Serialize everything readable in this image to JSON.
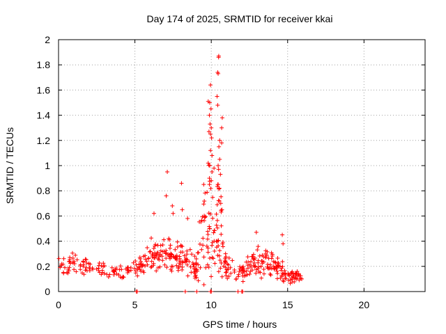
{
  "chart_data": {
    "type": "scatter",
    "title": "Day 174 of 2025, SRMTID for receiver kkai",
    "xlabel": "GPS time / hours",
    "ylabel": "SRMTID / TECUs",
    "xlim": [
      0,
      24
    ],
    "ylim": [
      0,
      2
    ],
    "x_ticks": [
      0,
      5,
      10,
      15,
      20
    ],
    "x_tick_labels": [
      "0",
      "5",
      "10",
      "15",
      "20"
    ],
    "y_ticks": [
      0,
      0.2,
      0.4,
      0.6,
      0.8,
      1,
      1.2,
      1.4,
      1.6,
      1.8,
      2
    ],
    "y_tick_labels": [
      "0",
      "0.2",
      "0.4",
      "0.6",
      "0.8",
      "1",
      "1.2",
      "1.4",
      "1.6",
      "1.8",
      "2"
    ],
    "grid": true,
    "marker": "+",
    "series": [
      {
        "name": "SRMTID",
        "color": "#ff0000",
        "marker": "+",
        "profile": [
          {
            "x": 0.0,
            "base": 0.18,
            "spread": 0.06,
            "n": 22
          },
          {
            "x": 1.0,
            "base": 0.22,
            "spread": 0.07,
            "n": 22
          },
          {
            "x": 2.0,
            "base": 0.2,
            "spread": 0.05,
            "n": 18
          },
          {
            "x": 3.0,
            "base": 0.16,
            "spread": 0.05,
            "n": 18
          },
          {
            "x": 4.0,
            "base": 0.16,
            "spread": 0.05,
            "n": 18
          },
          {
            "x": 5.0,
            "base": 0.17,
            "spread": 0.06,
            "n": 18
          },
          {
            "x": 5.5,
            "base": 0.2,
            "spread": 0.07,
            "n": 14
          },
          {
            "x": 6.0,
            "base": 0.32,
            "spread": 0.12,
            "n": 22
          },
          {
            "x": 6.5,
            "base": 0.26,
            "spread": 0.1,
            "n": 18
          },
          {
            "x": 7.0,
            "base": 0.35,
            "spread": 0.12,
            "n": 22
          },
          {
            "x": 7.5,
            "base": 0.3,
            "spread": 0.13,
            "n": 22
          },
          {
            "x": 8.0,
            "base": 0.26,
            "spread": 0.1,
            "n": 20
          },
          {
            "x": 8.5,
            "base": 0.24,
            "spread": 0.1,
            "n": 20
          },
          {
            "x": 9.0,
            "base": 0.18,
            "spread": 0.07,
            "n": 20
          },
          {
            "x": 9.5,
            "base": 0.5,
            "spread": 0.35,
            "n": 30
          },
          {
            "x": 10.0,
            "base": 0.55,
            "spread": 0.4,
            "n": 30
          },
          {
            "x": 10.5,
            "base": 0.55,
            "spread": 0.35,
            "n": 28
          },
          {
            "x": 11.0,
            "base": 0.2,
            "spread": 0.08,
            "n": 22
          },
          {
            "x": 12.0,
            "base": 0.15,
            "spread": 0.06,
            "n": 20
          },
          {
            "x": 12.5,
            "base": 0.2,
            "spread": 0.08,
            "n": 18
          },
          {
            "x": 13.0,
            "base": 0.22,
            "spread": 0.1,
            "n": 20
          },
          {
            "x": 13.5,
            "base": 0.25,
            "spread": 0.1,
            "n": 20
          },
          {
            "x": 14.0,
            "base": 0.18,
            "spread": 0.09,
            "n": 20
          },
          {
            "x": 14.5,
            "base": 0.18,
            "spread": 0.08,
            "n": 18
          },
          {
            "x": 15.0,
            "base": 0.1,
            "spread": 0.04,
            "n": 16
          },
          {
            "x": 15.5,
            "base": 0.12,
            "spread": 0.04,
            "n": 16
          },
          {
            "x": 16.0,
            "base": 0.1,
            "spread": 0.03,
            "n": 12
          }
        ],
        "highlights": [
          [
            10.49,
            1.87
          ],
          [
            10.48,
            1.86
          ],
          [
            10.42,
            1.74
          ],
          [
            10.45,
            1.73
          ],
          [
            9.95,
            1.64
          ],
          [
            10.38,
            1.55
          ],
          [
            9.8,
            1.51
          ],
          [
            9.9,
            1.5
          ],
          [
            10.42,
            1.48
          ],
          [
            9.98,
            1.45
          ],
          [
            9.88,
            1.4
          ],
          [
            10.72,
            1.38
          ],
          [
            9.92,
            1.33
          ],
          [
            10.0,
            1.3
          ],
          [
            10.68,
            1.3
          ],
          [
            9.85,
            1.27
          ],
          [
            9.95,
            1.25
          ],
          [
            10.02,
            1.22
          ],
          [
            10.55,
            1.2
          ],
          [
            10.68,
            1.18
          ],
          [
            10.5,
            1.15
          ],
          [
            9.95,
            1.12
          ],
          [
            10.05,
            1.08
          ],
          [
            10.55,
            1.05
          ],
          [
            9.8,
            1.02
          ],
          [
            9.9,
            1.0
          ],
          [
            10.45,
            1.0
          ],
          [
            10.48,
            0.97
          ],
          [
            10.05,
            0.95
          ],
          [
            10.6,
            0.93
          ],
          [
            9.88,
            0.9
          ],
          [
            10.0,
            0.88
          ],
          [
            9.88,
            0.85
          ],
          [
            10.45,
            0.85
          ],
          [
            7.12,
            0.95
          ],
          [
            8.05,
            0.86
          ],
          [
            7.05,
            0.76
          ],
          [
            7.45,
            0.68
          ],
          [
            7.5,
            0.62
          ],
          [
            6.25,
            0.62
          ],
          [
            8.1,
            0.65
          ],
          [
            8.45,
            0.58
          ],
          [
            10.7,
            0.65
          ],
          [
            10.62,
            0.7
          ],
          [
            12.95,
            0.47
          ],
          [
            14.65,
            0.45
          ],
          [
            14.7,
            0.38
          ]
        ],
        "zeros": [
          5.1,
          5.15,
          8.3,
          9.05,
          9.95,
          10.0,
          11.75,
          12.0,
          12.05
        ]
      }
    ]
  }
}
